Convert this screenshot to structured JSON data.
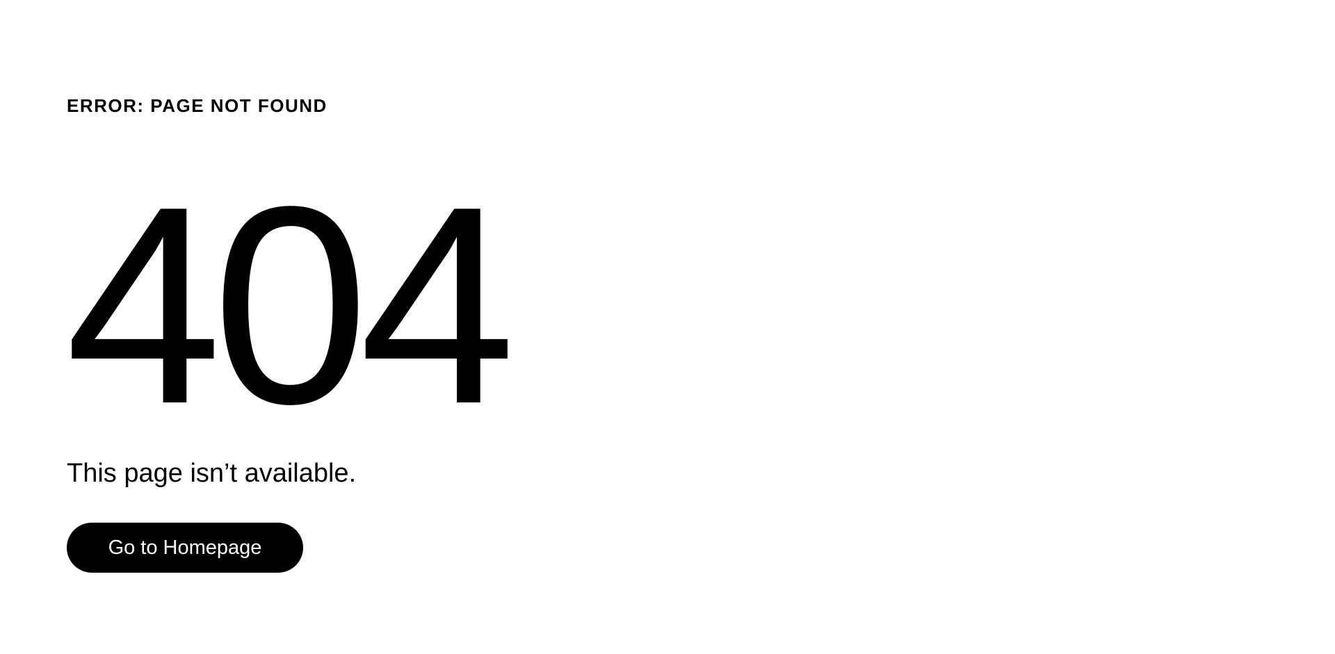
{
  "error": {
    "eyebrow": "ERROR: PAGE NOT FOUND",
    "code": "404",
    "message": "This page isn’t available.",
    "button_label": "Go to Homepage"
  },
  "colors": {
    "background": "#ffffff",
    "text": "#000000",
    "button_bg": "#000000",
    "button_text": "#ffffff"
  }
}
